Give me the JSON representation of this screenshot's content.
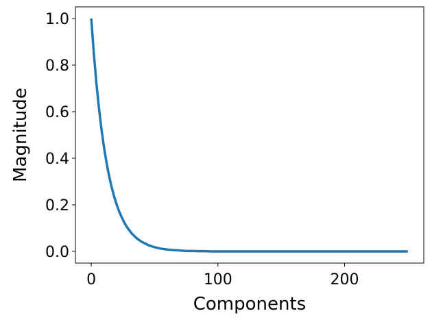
{
  "chart_data": {
    "type": "line",
    "xlabel": "Components",
    "ylabel": "Magnitude",
    "x": [
      0,
      2,
      4,
      6,
      8,
      10,
      12,
      14,
      16,
      18,
      20,
      22,
      24,
      26,
      28,
      30,
      32,
      34,
      36,
      38,
      40,
      45,
      50,
      55,
      60,
      65,
      70,
      75,
      80,
      85,
      90,
      95,
      100,
      105,
      110,
      115,
      120,
      125,
      130,
      135,
      140,
      145,
      150,
      155,
      160,
      165,
      170,
      175,
      180,
      185,
      190,
      195,
      200,
      205,
      210,
      215,
      220,
      225,
      230,
      235,
      240,
      245,
      250
    ],
    "series": [
      {
        "color": "#1f77b4",
        "values": [
          1,
          0.852,
          0.726,
          0.619,
          0.527,
          0.449,
          0.383,
          0.326,
          0.278,
          0.237,
          0.202,
          0.172,
          0.147,
          0.125,
          0.106,
          0.091,
          0.077,
          0.066,
          0.056,
          0.048,
          0.041,
          0.027,
          0.018,
          0.012,
          0.008,
          0.006,
          0.004,
          0.002,
          0.002,
          0.001,
          0.001,
          0,
          0,
          0,
          0,
          0,
          0,
          0,
          0,
          0,
          0,
          0,
          0,
          0,
          0,
          0,
          0,
          0,
          0,
          0,
          0,
          0,
          0,
          0,
          0,
          0,
          0,
          0,
          0,
          0,
          0,
          0,
          0
        ]
      }
    ],
    "xlim": [
      -12.5,
      262.5
    ],
    "xticks": [
      0,
      100,
      200
    ],
    "ylim": [
      -0.05,
      1.05
    ],
    "yticks": [
      {
        "value": 0,
        "label": "0.0"
      },
      0.2,
      0.4,
      0.6,
      0.8,
      {
        "value": 1,
        "label": "1.0"
      }
    ],
    "grid": false
  }
}
